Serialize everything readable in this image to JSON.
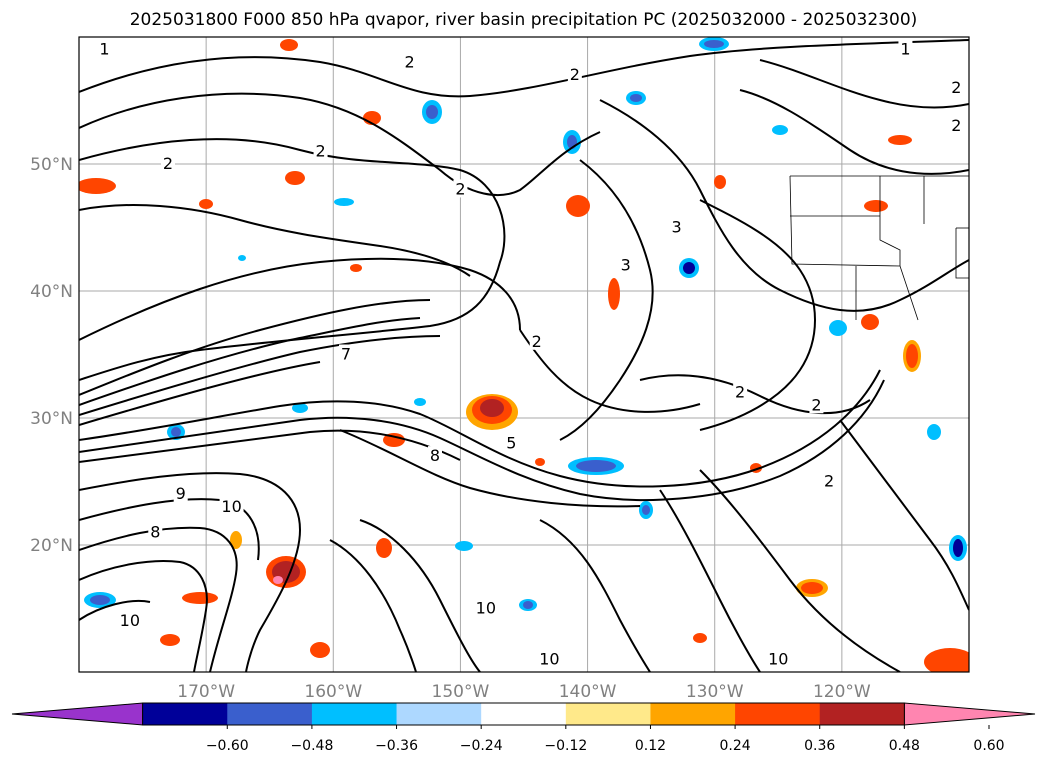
{
  "title": "2025031800 F000 850 hPa qvapor, river basin precipitation PC (2025032000 - 2025032300)",
  "map": {
    "lon_range": [
      -180,
      -110
    ],
    "lat_range": [
      10,
      60
    ],
    "lat_ticks": [
      {
        "value": 50,
        "label": "50°N"
      },
      {
        "value": 40,
        "label": "40°N"
      },
      {
        "value": 30,
        "label": "30°N"
      },
      {
        "value": 20,
        "label": "20°N"
      }
    ],
    "lon_ticks": [
      {
        "value": -170,
        "label": "170°W"
      },
      {
        "value": -160,
        "label": "160°W"
      },
      {
        "value": -150,
        "label": "150°W"
      },
      {
        "value": -140,
        "label": "140°W"
      },
      {
        "value": -130,
        "label": "130°W"
      },
      {
        "value": -120,
        "label": "120°W"
      }
    ],
    "gridlines": true,
    "contour_labels": [
      {
        "text": "1",
        "lon": -178,
        "lat": 59
      },
      {
        "text": "1",
        "lon": -115,
        "lat": 59
      },
      {
        "text": "2",
        "lon": -154,
        "lat": 58
      },
      {
        "text": "2",
        "lon": -141,
        "lat": 57
      },
      {
        "text": "2",
        "lon": -111,
        "lat": 56
      },
      {
        "text": "2",
        "lon": -111,
        "lat": 53
      },
      {
        "text": "2",
        "lon": -173,
        "lat": 50
      },
      {
        "text": "2",
        "lon": -161,
        "lat": 51
      },
      {
        "text": "2",
        "lon": -150,
        "lat": 48
      },
      {
        "text": "3",
        "lon": -133,
        "lat": 45
      },
      {
        "text": "3",
        "lon": -137,
        "lat": 42
      },
      {
        "text": "7",
        "lon": -159,
        "lat": 35
      },
      {
        "text": "2",
        "lon": -144,
        "lat": 36
      },
      {
        "text": "2",
        "lon": -128,
        "lat": 32
      },
      {
        "text": "2",
        "lon": -122,
        "lat": 31
      },
      {
        "text": "5",
        "lon": -146,
        "lat": 28
      },
      {
        "text": "8",
        "lon": -152,
        "lat": 27
      },
      {
        "text": "2",
        "lon": -121,
        "lat": 25
      },
      {
        "text": "9",
        "lon": -172,
        "lat": 24
      },
      {
        "text": "10",
        "lon": -168,
        "lat": 23
      },
      {
        "text": "8",
        "lon": -174,
        "lat": 21
      },
      {
        "text": "10",
        "lon": -176,
        "lat": 14
      },
      {
        "text": "10",
        "lon": -148,
        "lat": 15
      },
      {
        "text": "10",
        "lon": -143,
        "lat": 11
      },
      {
        "text": "10",
        "lon": -125,
        "lat": 11
      }
    ]
  },
  "colorbar": {
    "levels": [
      "−0.60",
      "−0.48",
      "−0.36",
      "−0.24",
      "−0.12",
      "0.12",
      "0.24",
      "0.36",
      "0.48",
      "0.60"
    ],
    "colors": [
      "#9933cc",
      "#000099",
      "#3a5fcd",
      "#00bfff",
      "#add8ff",
      "#ffffff",
      "#ffe98a",
      "#ffa500",
      "#ff4500",
      "#b22222",
      "#ff85b0"
    ],
    "extend": "both"
  }
}
